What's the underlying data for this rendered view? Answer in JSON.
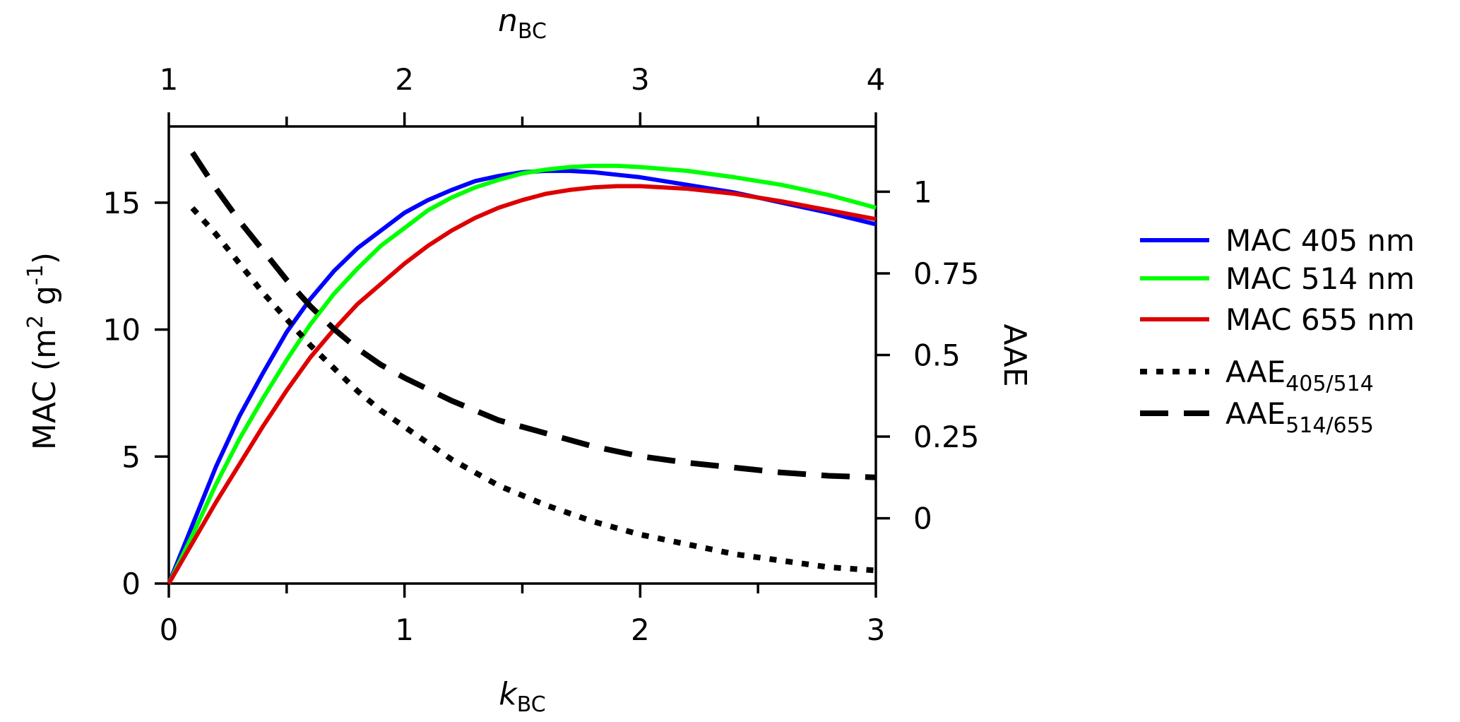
{
  "chart_data": {
    "type": "line",
    "axes": {
      "x_bottom": {
        "label_main": "k",
        "label_sub": "BC",
        "range": [
          0,
          3
        ],
        "ticks": [
          0,
          1,
          2,
          3
        ],
        "tick_labels": [
          "0",
          "1",
          "2",
          "3"
        ]
      },
      "x_top": {
        "label_main": "n",
        "label_sub": "BC",
        "range": [
          1,
          4
        ],
        "ticks": [
          1,
          2,
          3,
          4
        ],
        "tick_labels": [
          "1",
          "2",
          "3",
          "4"
        ]
      },
      "y_left": {
        "label": "MAC (m² g⁻¹)",
        "label_prefix": "MAC (m",
        "label_sup1": "2",
        "label_mid": " g",
        "label_sup2": "-1",
        "label_suffix": ")",
        "range": [
          0,
          18
        ],
        "ticks": [
          0,
          5,
          10,
          15
        ],
        "tick_labels": [
          "0",
          "5",
          "10",
          "15"
        ]
      },
      "y_right": {
        "label": "AAE",
        "range": [
          -0.2,
          1.2
        ],
        "ticks": [
          0,
          0.25,
          0.5,
          0.75,
          1
        ],
        "tick_labels": [
          "0",
          "0.25",
          "0.5",
          "0.75",
          "1"
        ]
      }
    },
    "grid": false,
    "legend_position": "outside-right",
    "series": [
      {
        "name": "MAC 405 nm",
        "legend_text": "MAC 405 nm",
        "axis": "left",
        "color": "#0000ff",
        "style": "solid",
        "x": [
          0,
          0.1,
          0.2,
          0.3,
          0.4,
          0.5,
          0.6,
          0.7,
          0.8,
          0.9,
          1.0,
          1.1,
          1.2,
          1.3,
          1.4,
          1.5,
          1.6,
          1.7,
          1.8,
          1.9,
          2.0,
          2.2,
          2.4,
          2.6,
          2.8,
          3.0
        ],
        "y": [
          0,
          2.3,
          4.6,
          6.6,
          8.3,
          9.9,
          11.2,
          12.3,
          13.2,
          13.9,
          14.6,
          15.1,
          15.5,
          15.85,
          16.05,
          16.2,
          16.25,
          16.25,
          16.2,
          16.1,
          16.0,
          15.7,
          15.4,
          15.0,
          14.6,
          14.15
        ]
      },
      {
        "name": "MAC 514 nm",
        "legend_text": "MAC 514 nm",
        "axis": "left",
        "color": "#00ff00",
        "style": "solid",
        "x": [
          0,
          0.1,
          0.2,
          0.3,
          0.4,
          0.5,
          0.6,
          0.7,
          0.8,
          0.9,
          1.0,
          1.1,
          1.2,
          1.3,
          1.4,
          1.5,
          1.6,
          1.7,
          1.8,
          1.9,
          2.0,
          2.2,
          2.4,
          2.6,
          2.8,
          3.0
        ],
        "y": [
          0,
          1.9,
          3.9,
          5.7,
          7.3,
          8.8,
          10.2,
          11.4,
          12.4,
          13.3,
          14.0,
          14.7,
          15.2,
          15.6,
          15.9,
          16.15,
          16.3,
          16.4,
          16.45,
          16.45,
          16.4,
          16.25,
          16.0,
          15.7,
          15.3,
          14.8
        ]
      },
      {
        "name": "MAC 655 nm",
        "legend_text": "MAC 655 nm",
        "axis": "left",
        "color": "#dd0000",
        "style": "solid",
        "x": [
          0,
          0.1,
          0.2,
          0.3,
          0.4,
          0.5,
          0.6,
          0.7,
          0.8,
          0.9,
          1.0,
          1.1,
          1.2,
          1.3,
          1.4,
          1.5,
          1.6,
          1.7,
          1.8,
          1.9,
          2.0,
          2.2,
          2.4,
          2.6,
          2.8,
          3.0
        ],
        "y": [
          0,
          1.6,
          3.2,
          4.7,
          6.2,
          7.6,
          8.9,
          10.0,
          11.0,
          11.8,
          12.6,
          13.3,
          13.9,
          14.4,
          14.8,
          15.1,
          15.35,
          15.5,
          15.6,
          15.65,
          15.65,
          15.55,
          15.35,
          15.05,
          14.7,
          14.35
        ]
      },
      {
        "name": "AAE405/514",
        "legend_main": "AAE",
        "legend_sub": "405/514",
        "axis": "right",
        "color": "#000000",
        "style": "dotted",
        "x": [
          0.1,
          0.2,
          0.3,
          0.4,
          0.5,
          0.6,
          0.7,
          0.8,
          0.9,
          1.0,
          1.2,
          1.4,
          1.6,
          1.8,
          2.0,
          2.2,
          2.4,
          2.6,
          2.8,
          3.0
        ],
        "y": [
          0.95,
          0.87,
          0.78,
          0.69,
          0.61,
          0.53,
          0.46,
          0.39,
          0.33,
          0.28,
          0.18,
          0.1,
          0.04,
          -0.01,
          -0.05,
          -0.08,
          -0.11,
          -0.13,
          -0.15,
          -0.16
        ]
      },
      {
        "name": "AAE514/655",
        "legend_main": "AAE",
        "legend_sub": "514/655",
        "axis": "right",
        "color": "#000000",
        "style": "dashed",
        "x": [
          0.1,
          0.2,
          0.3,
          0.4,
          0.5,
          0.6,
          0.7,
          0.8,
          0.9,
          1.0,
          1.2,
          1.4,
          1.6,
          1.8,
          2.0,
          2.2,
          2.4,
          2.6,
          2.8,
          3.0
        ],
        "y": [
          1.12,
          1.01,
          0.91,
          0.82,
          0.73,
          0.65,
          0.58,
          0.52,
          0.47,
          0.43,
          0.36,
          0.3,
          0.26,
          0.22,
          0.19,
          0.17,
          0.155,
          0.14,
          0.13,
          0.125
        ]
      }
    ]
  }
}
